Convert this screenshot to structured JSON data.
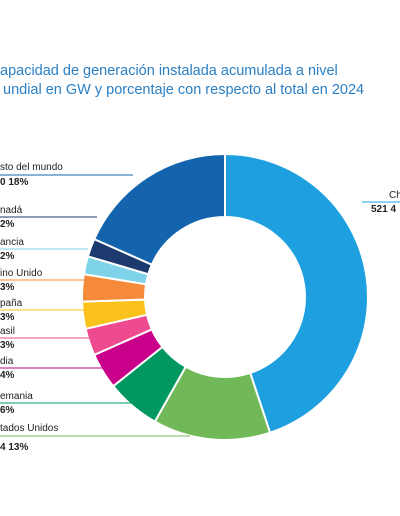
{
  "title_lines": [
    "apacidad de generación instalada acumulada a nivel",
    "undial en GW y porcentaje con respecto al total en 2024"
  ],
  "chart_data": {
    "type": "pie",
    "variant": "donut",
    "slices": [
      {
        "name": "Ch",
        "value_text": "521  4",
        "percent": 44,
        "color": "#1ea0e0"
      },
      {
        "name": "tados Unidos",
        "value_text": "4  13%",
        "percent": 13,
        "color": "#70b858"
      },
      {
        "name": "emania",
        "value_text": "6%",
        "percent": 6,
        "color": "#009860"
      },
      {
        "name": "dia",
        "value_text": "4%",
        "percent": 4,
        "color": "#c8008a"
      },
      {
        "name": "asil",
        "value_text": "3%",
        "percent": 3,
        "color": "#ee4a90"
      },
      {
        "name": "paña",
        "value_text": "3%",
        "percent": 3,
        "color": "#fbc21b"
      },
      {
        "name": "ino Unido",
        "value_text": "3%",
        "percent": 3,
        "color": "#f48a3a"
      },
      {
        "name": "ancia",
        "value_text": "2%",
        "percent": 2,
        "color": "#7fd3e8"
      },
      {
        "name": "nadá",
        "value_text": "2%",
        "percent": 2,
        "color": "#1c3a6e"
      },
      {
        "name": "sto del mundo",
        "value_text": "0 18%",
        "percent": 18,
        "color": "#1464ad"
      }
    ]
  }
}
